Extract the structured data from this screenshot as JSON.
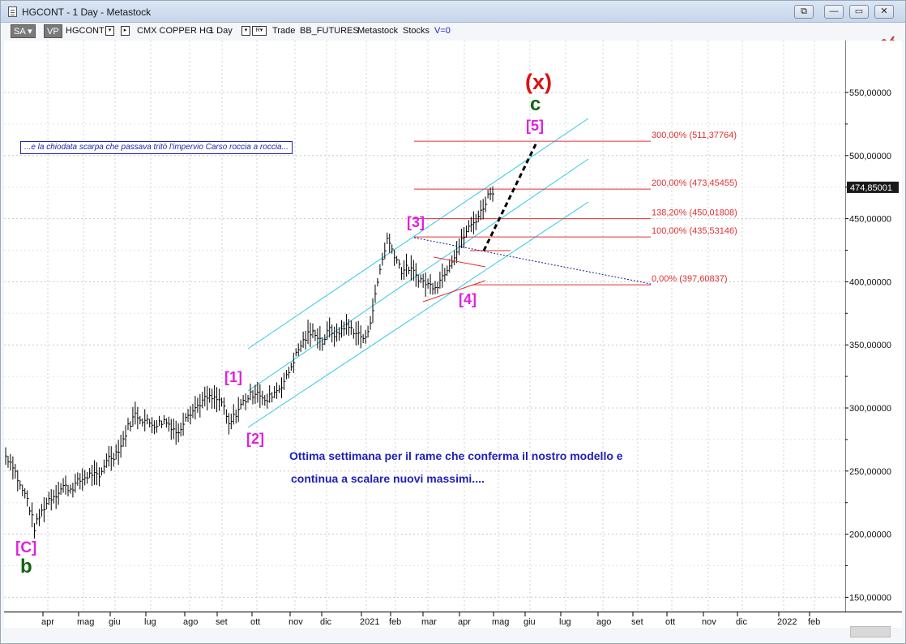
{
  "window": {
    "title": "HGCONT - 1 Day - Metastock",
    "buttons": {
      "restore_chart": "⧉",
      "minimize": "—",
      "maximize": "▭",
      "close": "✕"
    }
  },
  "toolbar": {
    "sa": "SA",
    "vp": "VP",
    "symbol": "HGCONT",
    "name": "CMX COPPER HG",
    "interval": "1 Day",
    "mode": "Trade",
    "source": "BB_FUTURES",
    "app": "Metastock",
    "stocks": "Stocks",
    "volume": "V=0",
    "r_label": "R"
  },
  "chart_data": {
    "type": "line",
    "price_axis_labels": [
      "550,00000",
      "500,00000",
      "450,00000",
      "400,00000",
      "350,00000",
      "300,00000",
      "250,00000",
      "200,00000",
      "150,00000"
    ],
    "ylim": [
      130,
      590
    ],
    "last_price": "474,85001",
    "time_axis_labels": [
      "apr",
      "mag",
      "giu",
      "lug",
      "ago",
      "set",
      "ott",
      "nov",
      "dic",
      "2021",
      "feb",
      "mar",
      "apr",
      "mag",
      "giu",
      "lug",
      "ago",
      "set",
      "ott",
      "nov",
      "dic",
      "2022",
      "feb"
    ],
    "fib_levels": [
      {
        "label": "300,00% (511,37764)",
        "value": 511.38
      },
      {
        "label": "200,00% (473,45455)",
        "value": 473.45
      },
      {
        "label": "138,20% (450,01808)",
        "value": 450.02
      },
      {
        "label": "100,00% (435,53146)",
        "value": 435.53
      },
      {
        "label": "0,00% (397,60837)",
        "value": 397.61
      }
    ],
    "price_path_closes": [
      262,
      255,
      238,
      228,
      205,
      218,
      228,
      232,
      238,
      236,
      241,
      245,
      248,
      244,
      260,
      262,
      270,
      285,
      295,
      291,
      288,
      287,
      290,
      286,
      279,
      295,
      298,
      304,
      308,
      307,
      305,
      286,
      296,
      305,
      310,
      314,
      304,
      311,
      316,
      324,
      338,
      350,
      358,
      360,
      352,
      362,
      357,
      365,
      363,
      358,
      354,
      378,
      410,
      434,
      422,
      409,
      411,
      405,
      400,
      397,
      398,
      408,
      418,
      428,
      440,
      447,
      455,
      468,
      474.85
    ],
    "colors": {
      "bars": "#000000",
      "fib": "#e03030",
      "channel": "#33c8e8",
      "wave_magenta": "#dd22dd",
      "wave_red": "#dd1111",
      "wave_green": "#116611",
      "comment": "#2020b8",
      "projection": "#000000",
      "trendline": "#1a1a8a"
    }
  },
  "waves": {
    "c_bracket": "[C]",
    "b_label": "b",
    "w1": "[1]",
    "w2": "[2]",
    "w3": "[3]",
    "w4": "[4]",
    "w5": "[5]",
    "c_label": "c",
    "x_label": "(x)"
  },
  "annotations": {
    "note": "...e la chiodata scarpa che passava tritò l'impervio Carso roccia a roccia...",
    "comment_line1": "Ottima settimana per il rame che conferma il nostro modello e",
    "comment_line2": "continua a scalare nuovi massimi...."
  }
}
